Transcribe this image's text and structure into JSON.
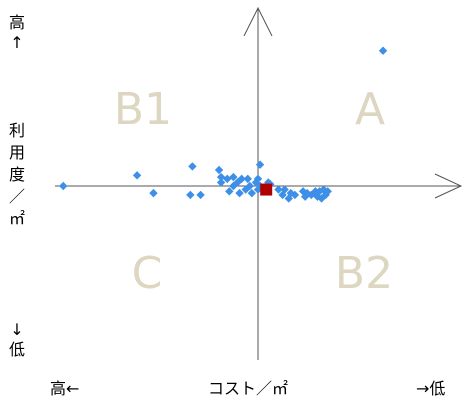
{
  "chart_data": {
    "type": "scatter",
    "title": "",
    "x_axis": {
      "label": "コスト／㎡",
      "left_end_label": "高←",
      "right_end_label": "→低"
    },
    "y_axis": {
      "top_end_label": "高↑",
      "label": "利用度／㎡",
      "bottom_end_label": "↓低"
    },
    "quadrant_labels": {
      "top_right": "A",
      "top_left": "B1",
      "bottom_right": "B2",
      "bottom_left": "C"
    },
    "xlim": [
      -100,
      100
    ],
    "ylim": [
      -100,
      100
    ],
    "grid": false,
    "series": [
      {
        "marker": "diamond",
        "color": "#3d8fe8",
        "points": [
          [
            -95,
            0
          ],
          [
            61,
            76
          ],
          [
            -59,
            6
          ],
          [
            -51,
            -4
          ],
          [
            -32,
            11
          ],
          [
            -33,
            -5
          ],
          [
            -28,
            -5
          ],
          [
            -19,
            9
          ],
          [
            -18,
            5
          ],
          [
            -18,
            2
          ],
          [
            -15,
            4
          ],
          [
            -14,
            -3
          ],
          [
            -12,
            0
          ],
          [
            -12,
            5
          ],
          [
            -10,
            2
          ],
          [
            -9,
            -4
          ],
          [
            -8,
            4
          ],
          [
            -6,
            -2
          ],
          [
            -5,
            4
          ],
          [
            -4,
            0
          ],
          [
            -3,
            -4
          ],
          [
            -1,
            2
          ],
          [
            0,
            4
          ],
          [
            1,
            12
          ],
          [
            0,
            -2
          ],
          [
            1,
            0
          ],
          [
            3,
            -2
          ],
          [
            5,
            2
          ],
          [
            6,
            1
          ],
          [
            10,
            -2
          ],
          [
            12,
            -5
          ],
          [
            13,
            -2
          ],
          [
            15,
            -7
          ],
          [
            16,
            -4
          ],
          [
            18,
            -5
          ],
          [
            22,
            -3
          ],
          [
            23,
            -6
          ],
          [
            24,
            -4
          ],
          [
            26,
            -5
          ],
          [
            28,
            -3
          ],
          [
            29,
            -6
          ],
          [
            30,
            -3
          ],
          [
            31,
            -7
          ],
          [
            32,
            -2
          ],
          [
            33,
            -5
          ],
          [
            34,
            -3
          ]
        ]
      },
      {
        "marker": "square",
        "color": "#b00000",
        "points": [
          [
            4,
            -2
          ]
        ]
      }
    ]
  }
}
